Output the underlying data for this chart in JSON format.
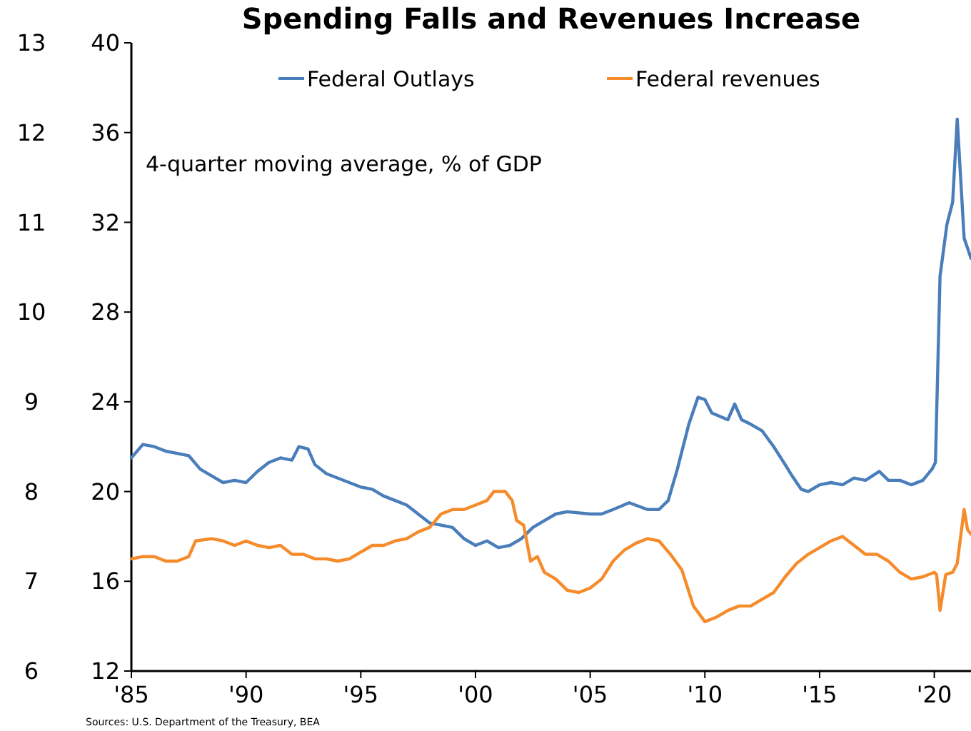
{
  "chart_data": {
    "type": "line",
    "title": "Spending Falls and Revenues Increase",
    "xlim": [
      1985,
      2021.6
    ],
    "xticks": [
      {
        "value": 1985,
        "label": "'85"
      },
      {
        "value": 1990,
        "label": "'90"
      },
      {
        "value": 1995,
        "label": "'95"
      },
      {
        "value": 2000,
        "label": "'00"
      },
      {
        "value": 2005,
        "label": "'05"
      },
      {
        "value": 2010,
        "label": "'10"
      },
      {
        "value": 2015,
        "label": "'15"
      },
      {
        "value": 2020,
        "label": "'20"
      }
    ],
    "ylim": [
      12,
      40
    ],
    "yticks": [
      12,
      16,
      20,
      24,
      28,
      32,
      36,
      40
    ],
    "y2lim": [
      6,
      13
    ],
    "y2ticks": [
      6,
      7,
      8,
      9,
      10,
      11,
      12,
      13
    ],
    "legend": "top",
    "grid": false,
    "annotations": [
      "4-quarter moving average, % of GDP",
      "Sources: U.S. Department of the Treasury, BEA"
    ],
    "series": [
      {
        "name": "Federal Outlays",
        "color": "#4a7ebb",
        "x": [
          1985,
          1985.5,
          1986,
          1986.5,
          1987,
          1987.5,
          1988,
          1988.5,
          1989,
          1989.5,
          1990,
          1990.5,
          1991,
          1991.5,
          1992,
          1992.3,
          1992.7,
          1993,
          1993.5,
          1994,
          1994.5,
          1995,
          1995.5,
          1996,
          1996.5,
          1997,
          1997.5,
          1998,
          1998.5,
          1999,
          1999.5,
          2000,
          2000.5,
          2001,
          2001.5,
          2002,
          2002.5,
          2003,
          2003.5,
          2004,
          2005,
          2005.5,
          2006,
          2006.7,
          2007.5,
          2008,
          2008.4,
          2008.8,
          2009.3,
          2009.7,
          2010,
          2010.3,
          2011,
          2011.3,
          2011.6,
          2012,
          2012.5,
          2013,
          2013.5,
          2013.8,
          2014.2,
          2014.5,
          2015,
          2015.5,
          2016,
          2016.5,
          2017,
          2017.6,
          2018,
          2018.5,
          2019,
          2019.5,
          2019.9,
          2020.05,
          2020.25,
          2020.55,
          2020.8,
          2021,
          2021.3,
          2021.6
        ],
        "values": [
          21.5,
          22.1,
          22,
          21.8,
          21.7,
          21.6,
          21,
          20.7,
          20.4,
          20.5,
          20.4,
          20.9,
          21.3,
          21.5,
          21.4,
          22,
          21.9,
          21.2,
          20.8,
          20.6,
          20.4,
          20.2,
          20.1,
          19.8,
          19.6,
          19.4,
          19,
          18.6,
          18.5,
          18.4,
          17.9,
          17.6,
          17.8,
          17.5,
          17.6,
          17.9,
          18.4,
          18.7,
          19,
          19.1,
          19,
          19,
          19.2,
          19.5,
          19.2,
          19.2,
          19.6,
          21,
          23,
          24.2,
          24.1,
          23.5,
          23.2,
          23.9,
          23.2,
          23,
          22.7,
          22,
          21.2,
          20.7,
          20.1,
          20,
          20.3,
          20.4,
          20.3,
          20.6,
          20.5,
          20.9,
          20.5,
          20.5,
          20.3,
          20.5,
          21,
          21.3,
          29.6,
          31.9,
          32.9,
          36.6,
          31.3,
          30.4
        ]
      },
      {
        "name": "Federal revenues",
        "color": "#f68b2b",
        "x": [
          1985,
          1985.5,
          1986,
          1986.5,
          1987,
          1987.5,
          1987.8,
          1988.5,
          1989,
          1989.5,
          1990,
          1990.5,
          1991,
          1991.5,
          1992,
          1992.5,
          1993,
          1993.5,
          1994,
          1994.5,
          1995,
          1995.5,
          1996,
          1996.5,
          1997,
          1997.5,
          1998,
          1998.5,
          1999,
          1999.5,
          2000,
          2000.5,
          2000.8,
          2001.3,
          2001.6,
          2001.8,
          2002.1,
          2002.4,
          2002.7,
          2003,
          2003.5,
          2004,
          2004.5,
          2005,
          2005.5,
          2006,
          2006.5,
          2007,
          2007.5,
          2008,
          2008.5,
          2009,
          2009.5,
          2010,
          2010.5,
          2011,
          2011.5,
          2012,
          2012.5,
          2013,
          2013.5,
          2014,
          2014.5,
          2015,
          2015.5,
          2016,
          2016.5,
          2017,
          2017.5,
          2018,
          2018.5,
          2019,
          2019.5,
          2020,
          2020.1,
          2020.25,
          2020.5,
          2020.8,
          2021,
          2021.3,
          2021.45,
          2021.6
        ],
        "values": [
          17,
          17.1,
          17.1,
          16.9,
          16.9,
          17.1,
          17.8,
          17.9,
          17.8,
          17.6,
          17.8,
          17.6,
          17.5,
          17.6,
          17.2,
          17.2,
          17,
          17,
          16.9,
          17,
          17.3,
          17.6,
          17.6,
          17.8,
          17.9,
          18.2,
          18.4,
          19,
          19.2,
          19.2,
          19.4,
          19.6,
          20,
          20,
          19.6,
          18.7,
          18.5,
          16.9,
          17.1,
          16.4,
          16.1,
          15.6,
          15.5,
          15.7,
          16.1,
          16.9,
          17.4,
          17.7,
          17.9,
          17.8,
          17.2,
          16.5,
          14.9,
          14.2,
          14.4,
          14.7,
          14.9,
          14.9,
          15.2,
          15.5,
          16.2,
          16.8,
          17.2,
          17.5,
          17.8,
          18,
          17.6,
          17.2,
          17.2,
          16.9,
          16.4,
          16.1,
          16.2,
          16.4,
          16.3,
          14.7,
          16.3,
          16.4,
          16.8,
          19.2,
          18.3,
          18.1
        ]
      }
    ]
  }
}
